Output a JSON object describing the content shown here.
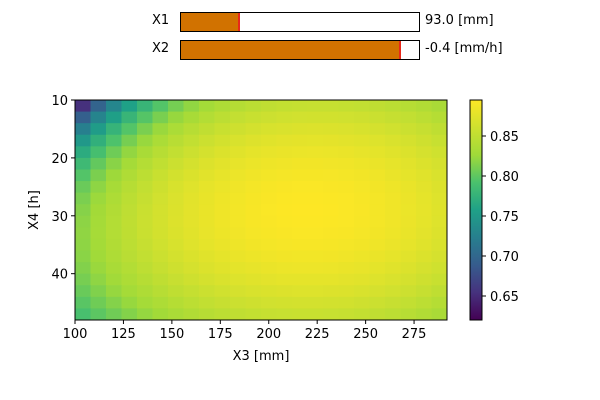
{
  "sliders": [
    {
      "label": "X1",
      "value_text": "93.0 [mm]",
      "fraction": 0.243
    },
    {
      "label": "X2",
      "value_text": "-0.4 [mm/h]",
      "fraction": 0.92
    }
  ],
  "colors": {
    "slider_fill": "#d17200",
    "slider_handle": "#e8281a"
  },
  "chart_data": {
    "type": "heatmap",
    "colormap": "viridis",
    "xlabel": "X3 [mm]",
    "ylabel": "X4 [h]",
    "x_ticks": [
      100,
      125,
      150,
      175,
      200,
      225,
      250,
      275
    ],
    "y_ticks": [
      10,
      20,
      30,
      40
    ],
    "x_cells": {
      "start": 100,
      "step": 8,
      "count": 24
    },
    "y_cells": {
      "start": 10,
      "step": 2,
      "count": 19
    },
    "xlim": [
      100,
      292
    ],
    "ylim": [
      48,
      10
    ],
    "peak": {
      "x": 220,
      "y": 29
    },
    "colorbar": {
      "range": [
        0.62,
        0.895
      ],
      "ticks": [
        0.65,
        0.7,
        0.75,
        0.8,
        0.85
      ]
    }
  }
}
